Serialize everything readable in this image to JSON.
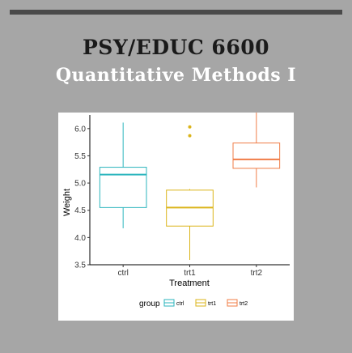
{
  "header": {
    "title": "PSY/EDUC 6600",
    "subtitle": "Quantitative Methods I"
  },
  "chart_data": {
    "type": "box",
    "categories": [
      "ctrl",
      "trt1",
      "trt2"
    ],
    "xlabel": "Treatment",
    "ylabel": "Weight",
    "ylim": [
      3.5,
      6.25
    ],
    "yticks": [
      3.5,
      4.0,
      4.5,
      5.0,
      5.5,
      6.0
    ],
    "ytick_labels": [
      "3.5",
      "4.0",
      "4.5",
      "5.0",
      "5.5",
      "6.0"
    ],
    "series": [
      {
        "name": "ctrl",
        "color": "#2bb5bd",
        "min": 4.17,
        "q1": 4.55,
        "median": 5.155,
        "q3": 5.29,
        "max": 6.11,
        "outliers": []
      },
      {
        "name": "trt1",
        "color": "#dbb41a",
        "min": 3.59,
        "q1": 4.21,
        "median": 4.55,
        "q3": 4.87,
        "max": 4.89,
        "outliers": [
          5.87,
          6.03
        ]
      },
      {
        "name": "trt2",
        "color": "#f07c46",
        "min": 4.92,
        "q1": 5.27,
        "median": 5.435,
        "q3": 5.735,
        "max": 6.31,
        "outliers": []
      }
    ],
    "legend": {
      "title": "group",
      "position": "bottom",
      "labels": [
        "ctrl",
        "trt1",
        "trt2"
      ]
    },
    "grid": false
  }
}
